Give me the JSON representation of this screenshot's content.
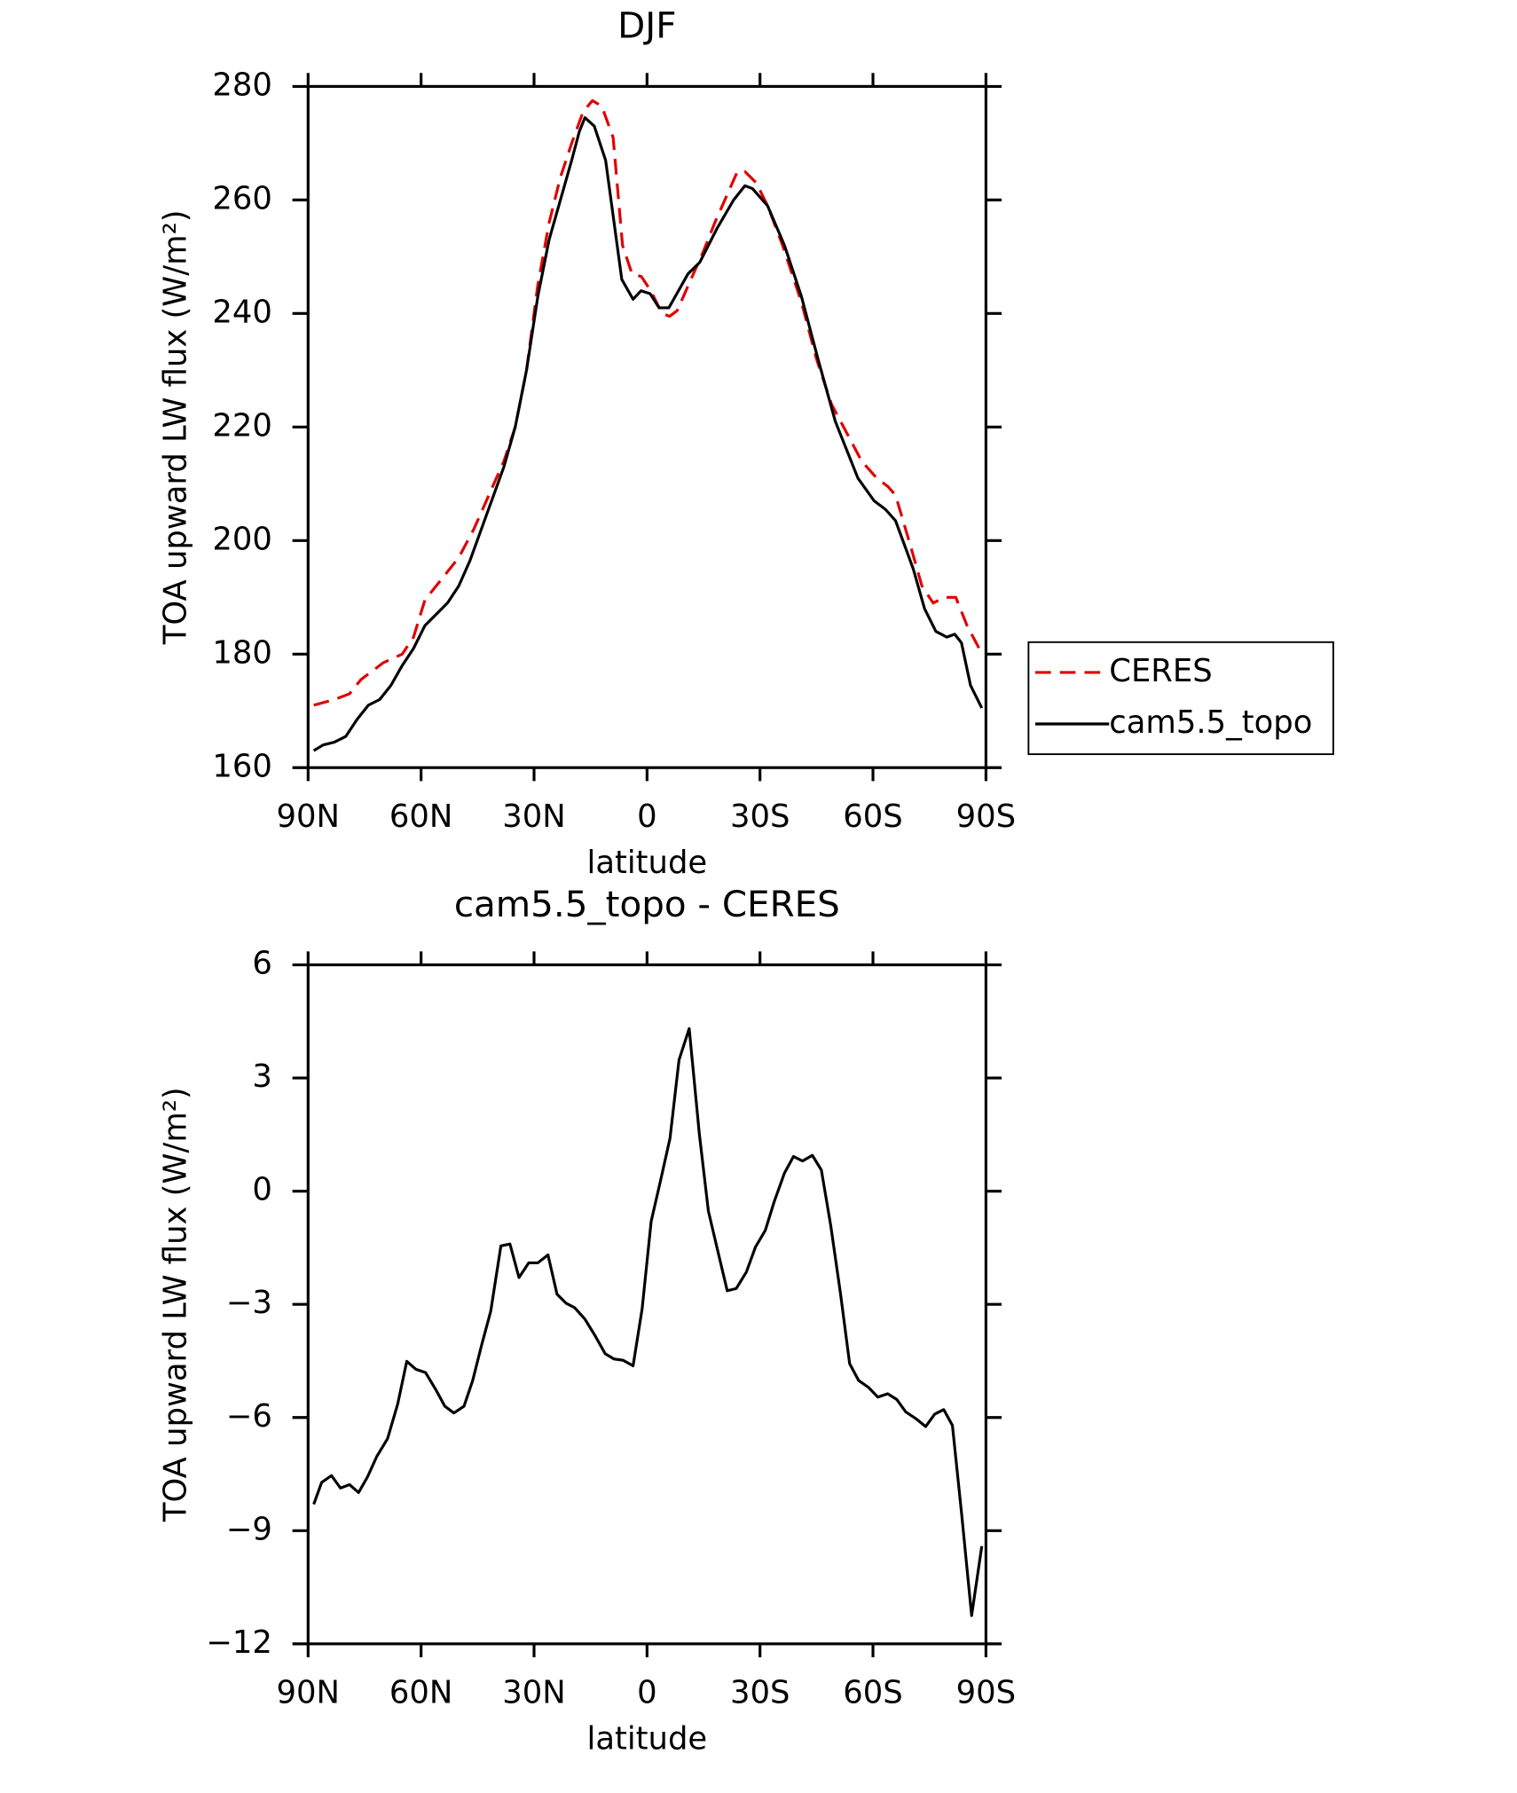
{
  "chart_data": [
    {
      "type": "line",
      "title": "DJF",
      "xlabel": "latitude",
      "ylabel": "TOA upward LW flux (W/m²)",
      "xlim": [
        90,
        -90
      ],
      "xticks": [
        {
          "value": 90,
          "label": "90N"
        },
        {
          "value": 60,
          "label": "60N"
        },
        {
          "value": 30,
          "label": "30N"
        },
        0,
        {
          "value": -30,
          "label": "30S"
        },
        {
          "value": -60,
          "label": "60S"
        },
        {
          "value": -90,
          "label": "90S"
        }
      ],
      "ylim": [
        160,
        280
      ],
      "yticks": [
        160,
        180,
        200,
        220,
        240,
        260,
        280
      ],
      "legend": "outside right",
      "series": [
        {
          "name": "CERES",
          "color": "#e00000",
          "linestyle": "dashed",
          "x": [
            88.5,
            83,
            79,
            76,
            73,
            70,
            65,
            62,
            59,
            56,
            53,
            50,
            46,
            42,
            38,
            35,
            32,
            29,
            26,
            23,
            20,
            17,
            14.5,
            12,
            9,
            6.5,
            4,
            1.5,
            -1,
            -4,
            -6,
            -8,
            -11,
            -15,
            -18,
            -22,
            -24,
            -26,
            -29,
            -32,
            -36,
            -41,
            -45,
            -49,
            -53,
            -57,
            -61,
            -64,
            -66,
            -70,
            -73,
            -76,
            -79,
            -82,
            -85,
            -89
          ],
          "values": [
            171,
            172,
            173,
            175.5,
            177,
            178.5,
            180,
            183,
            189.5,
            192,
            194.5,
            197,
            202,
            208,
            214,
            220,
            230,
            245,
            256,
            264,
            270,
            275.5,
            277.5,
            276.5,
            271,
            252,
            247,
            246.5,
            244,
            240,
            239.5,
            240.5,
            245,
            251,
            256,
            262,
            265,
            265,
            263,
            259,
            252,
            242,
            232,
            224,
            219,
            214,
            211,
            209.5,
            208,
            199,
            192,
            189,
            190,
            190,
            185,
            180
          ]
        },
        {
          "name": "cam5.5_topo",
          "color": "#000000",
          "linestyle": "solid",
          "x": [
            88.5,
            86,
            83,
            80,
            77,
            74,
            71,
            68,
            65,
            62,
            59,
            56,
            53,
            50,
            47,
            44,
            41,
            38,
            35,
            32,
            29,
            26,
            23,
            20,
            18,
            16.5,
            14,
            11,
            6.7,
            3.7,
            1.6,
            -0.8,
            -3.2,
            -5.8,
            -10.9,
            -14,
            -18.6,
            -23,
            -26,
            -28,
            -32,
            -36.5,
            -41,
            -45.4,
            -50,
            -56,
            -60.3,
            -63.3,
            -66,
            -70.7,
            -73.7,
            -76.7,
            -79.6,
            -81.7,
            -83.5,
            -85.9,
            -88.9
          ],
          "values": [
            163,
            164,
            164.5,
            165.5,
            168.5,
            171,
            172,
            174.5,
            178,
            181,
            185,
            187,
            189,
            192,
            196.5,
            202,
            207.5,
            213,
            220,
            230,
            243,
            253,
            260,
            267,
            272,
            274.5,
            273,
            267,
            246,
            242.5,
            244,
            243.5,
            241,
            241,
            247,
            249,
            255,
            260,
            262.5,
            262,
            259,
            252,
            243,
            232,
            221,
            211,
            207,
            205.5,
            203.5,
            195,
            188,
            184,
            183,
            183.5,
            182,
            174.5,
            170.5
          ]
        }
      ]
    },
    {
      "type": "line",
      "title": "cam5.5_topo - CERES",
      "xlabel": "latitude",
      "ylabel": "TOA upward LW flux (W/m²)",
      "xlim": [
        90,
        -90
      ],
      "xticks": [
        {
          "value": 90,
          "label": "90N"
        },
        {
          "value": 60,
          "label": "60N"
        },
        {
          "value": 30,
          "label": "30N"
        },
        0,
        {
          "value": -30,
          "label": "30S"
        },
        {
          "value": -60,
          "label": "60S"
        },
        {
          "value": -90,
          "label": "90S"
        }
      ],
      "ylim": [
        -12,
        6
      ],
      "yticks": [
        {
          "value": -12,
          "label": "−12"
        },
        {
          "value": -9,
          "label": "−9"
        },
        {
          "value": -6,
          "label": "−6"
        },
        {
          "value": -3,
          "label": "−3"
        },
        0,
        3,
        6
      ],
      "series": [
        {
          "color": "#000000",
          "linestyle": "solid",
          "x": [
            88.5,
            86.4,
            83.8,
            81.4,
            79,
            76.6,
            74.2,
            71.8,
            68.9,
            66.2,
            63.8,
            61.4,
            58.8,
            56.1,
            53.7,
            51.3,
            48.6,
            46.3,
            43.9,
            41.5,
            38.8,
            36.4,
            34,
            31.4,
            29,
            26.3,
            23.9,
            21.5,
            19.2,
            16.5,
            13.8,
            11.1,
            8.75,
            6.4,
            3.7,
            1.3,
            -1.1,
            -3.5,
            -6.1,
            -8.5,
            -11.2,
            -13.9,
            -16.3,
            -18.9,
            -21.3,
            -23.7,
            -26.4,
            -28.8,
            -31.4,
            -33.8,
            -36.5,
            -38.9,
            -41.3,
            -43.9,
            -46.3,
            -48.8,
            -51.4,
            -53.8,
            -56.2,
            -58.8,
            -61.3,
            -63.9,
            -66.3,
            -68.7,
            -71.4,
            -74,
            -76.4,
            -78.8,
            -81.1,
            -83.6,
            -86.2,
            -88.9
          ],
          "values": [
            -8.3,
            -7.72,
            -7.54,
            -7.87,
            -7.78,
            -7.99,
            -7.57,
            -7.04,
            -6.56,
            -5.64,
            -4.51,
            -4.72,
            -4.81,
            -5.26,
            -5.7,
            -5.88,
            -5.7,
            -5.02,
            -4.07,
            -3.18,
            -1.45,
            -1.4,
            -2.29,
            -1.9,
            -1.9,
            -1.69,
            -2.73,
            -2.97,
            -3.09,
            -3.39,
            -3.83,
            -4.31,
            -4.45,
            -4.48,
            -4.63,
            -3.12,
            -0.8,
            0.24,
            1.4,
            3.48,
            4.31,
            1.51,
            -0.53,
            -1.63,
            -2.64,
            -2.58,
            -2.14,
            -1.48,
            -1.04,
            -0.27,
            0.48,
            0.92,
            0.8,
            0.95,
            0.56,
            -0.92,
            -2.73,
            -4.57,
            -5.02,
            -5.2,
            -5.46,
            -5.37,
            -5.52,
            -5.85,
            -6.03,
            -6.24,
            -5.91,
            -5.79,
            -6.21,
            -8.61,
            -11.25,
            -9.41
          ]
        }
      ]
    }
  ]
}
